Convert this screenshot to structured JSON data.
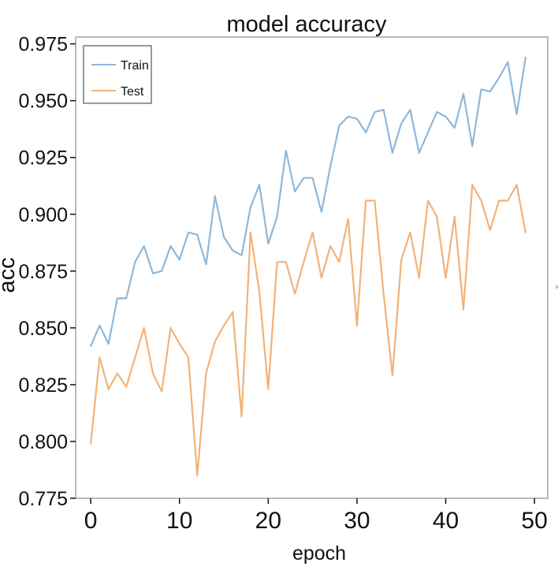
{
  "chart_data": {
    "type": "line",
    "title": "model accuracy",
    "xlabel": "epoch",
    "ylabel": "acc",
    "xlim": [
      -1.7,
      51.5
    ],
    "ylim": [
      0.775,
      0.978
    ],
    "x_ticks": [
      0,
      10,
      20,
      30,
      40,
      50
    ],
    "y_ticks": [
      0.775,
      0.8,
      0.825,
      0.85,
      0.875,
      0.9,
      0.925,
      0.95,
      0.975
    ],
    "y_tick_labels": [
      "0.775",
      "0.800",
      "0.825",
      "0.850",
      "0.875",
      "0.900",
      "0.925",
      "0.950",
      "0.975"
    ],
    "grid": false,
    "legend_position": "top-left",
    "x": [
      0,
      1,
      2,
      3,
      4,
      5,
      6,
      7,
      8,
      9,
      10,
      11,
      12,
      13,
      14,
      15,
      16,
      17,
      18,
      19,
      20,
      21,
      22,
      23,
      24,
      25,
      26,
      27,
      28,
      29,
      30,
      31,
      32,
      33,
      34,
      35,
      36,
      37,
      38,
      39,
      40,
      41,
      42,
      43,
      44,
      45,
      46,
      47,
      48,
      49
    ],
    "series": [
      {
        "name": "Train",
        "color": "#8fb7d9",
        "values": [
          0.842,
          0.851,
          0.843,
          0.863,
          0.863,
          0.879,
          0.886,
          0.874,
          0.875,
          0.886,
          0.88,
          0.892,
          0.891,
          0.878,
          0.908,
          0.89,
          0.884,
          0.882,
          0.903,
          0.913,
          0.887,
          0.899,
          0.928,
          0.91,
          0.916,
          0.916,
          0.901,
          0.921,
          0.939,
          0.943,
          0.942,
          0.936,
          0.945,
          0.946,
          0.927,
          0.94,
          0.946,
          0.927,
          0.936,
          0.945,
          0.943,
          0.938,
          0.953,
          0.93,
          0.955,
          0.954,
          0.96,
          0.967,
          0.944,
          0.969
        ]
      },
      {
        "name": "Test",
        "color": "#f2b27a",
        "values": [
          0.799,
          0.837,
          0.823,
          0.83,
          0.824,
          0.837,
          0.85,
          0.83,
          0.822,
          0.85,
          0.843,
          0.837,
          0.785,
          0.83,
          0.844,
          0.851,
          0.857,
          0.811,
          0.892,
          0.866,
          0.823,
          0.879,
          0.879,
          0.865,
          0.879,
          0.892,
          0.872,
          0.886,
          0.879,
          0.898,
          0.851,
          0.906,
          0.906,
          0.865,
          0.829,
          0.88,
          0.892,
          0.872,
          0.906,
          0.899,
          0.872,
          0.899,
          0.858,
          0.913,
          0.906,
          0.893,
          0.906,
          0.906,
          0.913,
          0.892
        ]
      }
    ]
  }
}
